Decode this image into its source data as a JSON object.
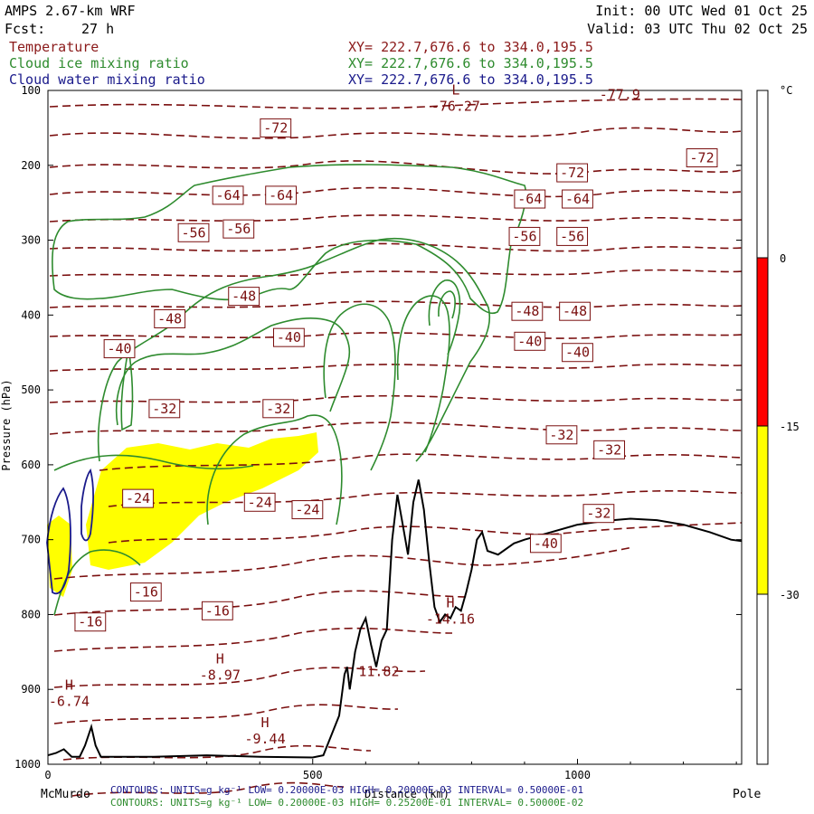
{
  "header": {
    "model": "AMPS 2.67-km WRF",
    "fcst_label": "Fcst:",
    "fcst_value": "27 h",
    "init": "Init: 00 UTC Wed 01 Oct 25",
    "valid": "Valid: 03 UTC Thu 02 Oct 25",
    "fields": [
      {
        "name": "Temperature",
        "xy": "XY= 222.7,676.6 to 334.0,195.5",
        "color": "#8b1a1a"
      },
      {
        "name": "Cloud ice mixing ratio",
        "xy": "XY= 222.7,676.6 to 334.0,195.5",
        "color": "#2e8b2e"
      },
      {
        "name": "Cloud water mixing ratio",
        "xy": "XY= 222.7,676.6 to 334.0,195.5",
        "color": "#1a1a8b"
      }
    ]
  },
  "footer": {
    "left_label": "McMurdo",
    "right_label": "Pole",
    "line1": "CONTOURS:  UNITS=g kg⁻¹  LOW= 0.20000E-03  HIGH= 0.20000E-03  INTERVAL=  0.50000E-01",
    "line2": "CONTOURS:  UNITS=g kg⁻¹  LOW= 0.20000E-03  HIGH= 0.25200E-01  INTERVAL=  0.50000E-02"
  },
  "colors": {
    "temperature": "#7a0f0f",
    "cloud_ice": "#2e8b2e",
    "cloud_water": "#1a1a8b",
    "terrain": "#000000",
    "shade_warm": "#ff0000",
    "shade_cold": "#ffff00"
  },
  "chart_data": {
    "type": "cross-section contour",
    "xlabel": "Distance (km)",
    "ylabel": "Pressure (hPa)",
    "xlim": [
      0,
      1310
    ],
    "ylim": [
      1000,
      100
    ],
    "x_ticks": [
      0,
      500,
      1000
    ],
    "y_ticks": [
      100,
      200,
      300,
      400,
      500,
      600,
      700,
      800,
      900,
      1000
    ],
    "colorbar": {
      "unit": "°C",
      "ticks": [
        "0",
        "-15",
        "-30"
      ],
      "bands": [
        {
          "from": 0,
          "to": -15,
          "color": "#ff0000"
        },
        {
          "from": -15,
          "to": -30,
          "color": "#ffff00"
        }
      ]
    },
    "temperature_labels": [
      {
        "text": "-72",
        "x": 430,
        "p": 150
      },
      {
        "text": "-72",
        "x": 990,
        "p": 210
      },
      {
        "text": "-72",
        "x": 1235,
        "p": 190
      },
      {
        "text": "-64",
        "x": 340,
        "p": 240
      },
      {
        "text": "-64",
        "x": 440,
        "p": 240
      },
      {
        "text": "-64",
        "x": 910,
        "p": 245
      },
      {
        "text": "-64",
        "x": 1000,
        "p": 245
      },
      {
        "text": "-56",
        "x": 275,
        "p": 290
      },
      {
        "text": "-56",
        "x": 360,
        "p": 285
      },
      {
        "text": "-56",
        "x": 900,
        "p": 295
      },
      {
        "text": "-56",
        "x": 990,
        "p": 295
      },
      {
        "text": "-48",
        "x": 230,
        "p": 405
      },
      {
        "text": "-48",
        "x": 370,
        "p": 375
      },
      {
        "text": "-48",
        "x": 905,
        "p": 395
      },
      {
        "text": "-48",
        "x": 995,
        "p": 395
      },
      {
        "text": "-40",
        "x": 135,
        "p": 445
      },
      {
        "text": "-40",
        "x": 455,
        "p": 430
      },
      {
        "text": "-40",
        "x": 910,
        "p": 435
      },
      {
        "text": "-40",
        "x": 1000,
        "p": 450
      },
      {
        "text": "-32",
        "x": 220,
        "p": 525
      },
      {
        "text": "-32",
        "x": 435,
        "p": 525
      },
      {
        "text": "-32",
        "x": 970,
        "p": 560
      },
      {
        "text": "-32",
        "x": 1060,
        "p": 580
      },
      {
        "text": "-32",
        "x": 1040,
        "p": 665
      },
      {
        "text": "-24",
        "x": 170,
        "p": 645
      },
      {
        "text": "-24",
        "x": 400,
        "p": 650
      },
      {
        "text": "-24",
        "x": 490,
        "p": 660
      },
      {
        "text": "-16",
        "x": 185,
        "p": 770
      },
      {
        "text": "-16",
        "x": 320,
        "p": 795
      },
      {
        "text": "-16",
        "x": 80,
        "p": 810
      },
      {
        "text": "-40",
        "x": 940,
        "p": 705
      }
    ],
    "extrema": [
      {
        "type": "L",
        "value": "-76.27",
        "x": 770,
        "p": 120
      },
      {
        "type": "H",
        "value": "-8.97",
        "x": 325,
        "p": 880
      },
      {
        "type": "H",
        "value": "-6.74",
        "x": 40,
        "p": 915
      },
      {
        "type": "H",
        "value": "-9.44",
        "x": 410,
        "p": 965
      },
      {
        "type": "H",
        "value": "-14.16",
        "x": 760,
        "p": 805
      },
      {
        "type": "",
        "value": "11.82",
        "x": 625,
        "p": 875
      },
      {
        "type": "",
        "value": "-77.9",
        "x": 1080,
        "p": 104
      }
    ],
    "terrain": [
      [
        0,
        988
      ],
      [
        15,
        985
      ],
      [
        30,
        980
      ],
      [
        45,
        990
      ],
      [
        60,
        990
      ],
      [
        70,
        975
      ],
      [
        82,
        950
      ],
      [
        90,
        975
      ],
      [
        100,
        990
      ],
      [
        200,
        990
      ],
      [
        300,
        988
      ],
      [
        400,
        990
      ],
      [
        500,
        991
      ],
      [
        520,
        988
      ],
      [
        550,
        935
      ],
      [
        560,
        880
      ],
      [
        565,
        870
      ],
      [
        570,
        900
      ],
      [
        580,
        850
      ],
      [
        590,
        820
      ],
      [
        600,
        805
      ],
      [
        610,
        840
      ],
      [
        620,
        870
      ],
      [
        630,
        835
      ],
      [
        640,
        820
      ],
      [
        650,
        700
      ],
      [
        660,
        640
      ],
      [
        670,
        680
      ],
      [
        680,
        720
      ],
      [
        690,
        650
      ],
      [
        700,
        620
      ],
      [
        710,
        660
      ],
      [
        720,
        730
      ],
      [
        730,
        790
      ],
      [
        740,
        810
      ],
      [
        750,
        800
      ],
      [
        760,
        805
      ],
      [
        770,
        790
      ],
      [
        780,
        795
      ],
      [
        790,
        770
      ],
      [
        800,
        740
      ],
      [
        810,
        700
      ],
      [
        820,
        690
      ],
      [
        830,
        715
      ],
      [
        850,
        720
      ],
      [
        880,
        705
      ],
      [
        900,
        700
      ],
      [
        950,
        690
      ],
      [
        1000,
        680
      ],
      [
        1050,
        675
      ],
      [
        1100,
        672
      ],
      [
        1150,
        674
      ],
      [
        1200,
        680
      ],
      [
        1250,
        690
      ],
      [
        1290,
        700
      ],
      [
        1310,
        702
      ]
    ]
  }
}
